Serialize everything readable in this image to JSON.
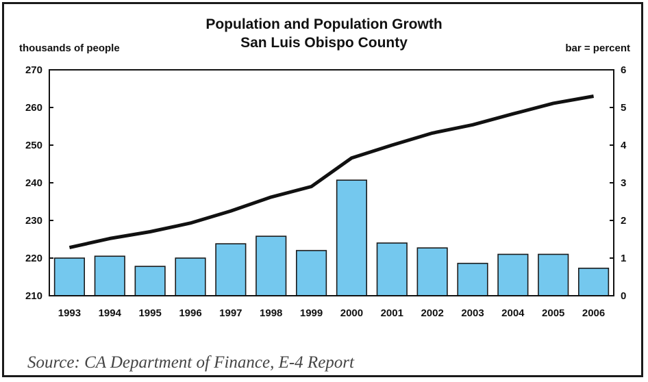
{
  "chart_data": {
    "type": "bar+line",
    "title": "Population and Population Growth",
    "subtitle": "San Luis Obispo County",
    "ylabel_left": "thousands of people",
    "ylabel_right": "bar = percent",
    "categories": [
      "1993",
      "1994",
      "1995",
      "1996",
      "1997",
      "1998",
      "1999",
      "2000",
      "2001",
      "2002",
      "2003",
      "2004",
      "2005",
      "2006"
    ],
    "line": {
      "axis": "left",
      "values": [
        222.8,
        225.2,
        227.0,
        229.3,
        232.5,
        236.2,
        239.0,
        246.6,
        250.0,
        253.2,
        255.4,
        258.3,
        261.1,
        263.0
      ]
    },
    "bars": {
      "axis": "right",
      "values": [
        1.0,
        1.05,
        0.78,
        1.0,
        1.38,
        1.58,
        1.2,
        3.07,
        1.4,
        1.27,
        0.86,
        1.1,
        1.1,
        0.73
      ]
    },
    "ylim_left": [
      210,
      270
    ],
    "yticks_left": [
      "270",
      "260",
      "250",
      "240",
      "230",
      "220",
      "210"
    ],
    "ylim_right": [
      0,
      6
    ],
    "yticks_right": [
      "6",
      "5",
      "4",
      "3",
      "2",
      "1",
      "0"
    ],
    "grid": false,
    "colors": {
      "bar": "#74c8ee",
      "bar_stroke": "#1a1a1a",
      "line": "#111111"
    }
  },
  "source": "Source: CA Department of Finance, E-4 Report"
}
